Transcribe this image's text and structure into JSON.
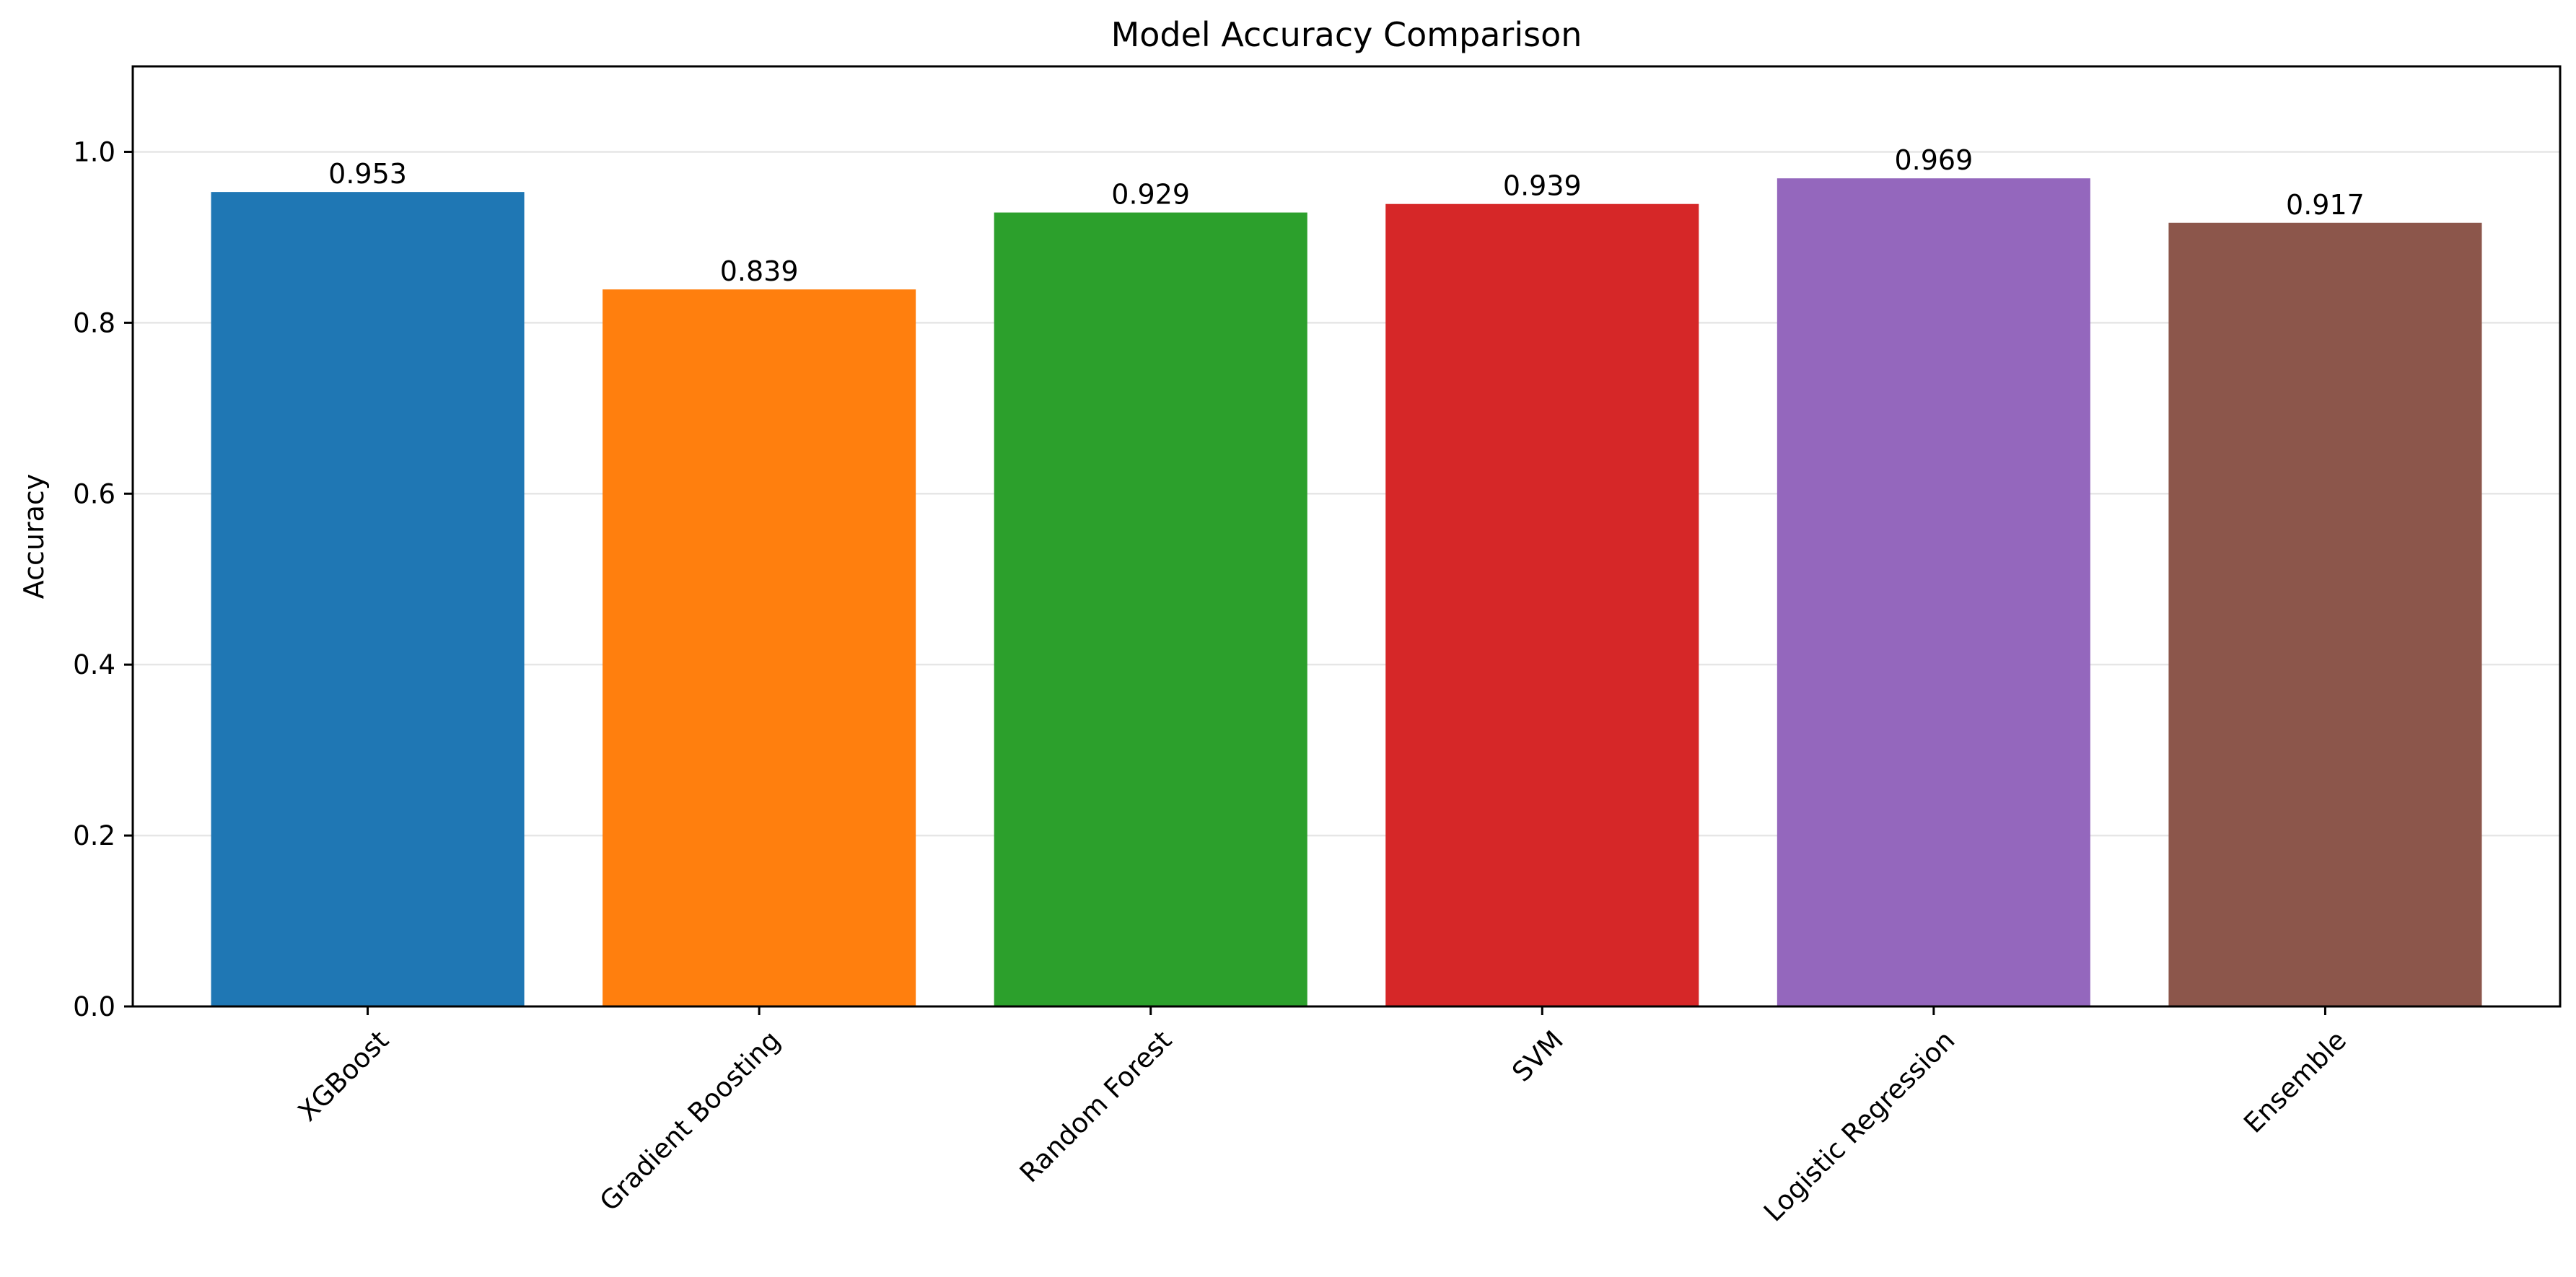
{
  "chart_data": {
    "type": "bar",
    "title": "Model Accuracy Comparison",
    "xlabel": "",
    "ylabel": "Accuracy",
    "categories": [
      "XGBoost",
      "Gradient Boosting",
      "Random Forest",
      "SVM",
      "Logistic Regression",
      "Ensemble"
    ],
    "values": [
      0.953,
      0.839,
      0.929,
      0.939,
      0.969,
      0.917
    ],
    "value_labels": [
      "0.953",
      "0.839",
      "0.929",
      "0.939",
      "0.969",
      "0.917"
    ],
    "colors": [
      "#1f77b4",
      "#ff7f0e",
      "#2ca02c",
      "#d62728",
      "#9467bd",
      "#8c564b"
    ],
    "ylim": [
      0,
      1.1
    ],
    "yticks": [
      0.0,
      0.2,
      0.4,
      0.6,
      0.8,
      1.0
    ],
    "ytick_labels": [
      "0.0",
      "0.2",
      "0.4",
      "0.6",
      "0.8",
      "1.0"
    ],
    "grid": {
      "axis": "y",
      "visible": true
    },
    "legend": "none"
  }
}
